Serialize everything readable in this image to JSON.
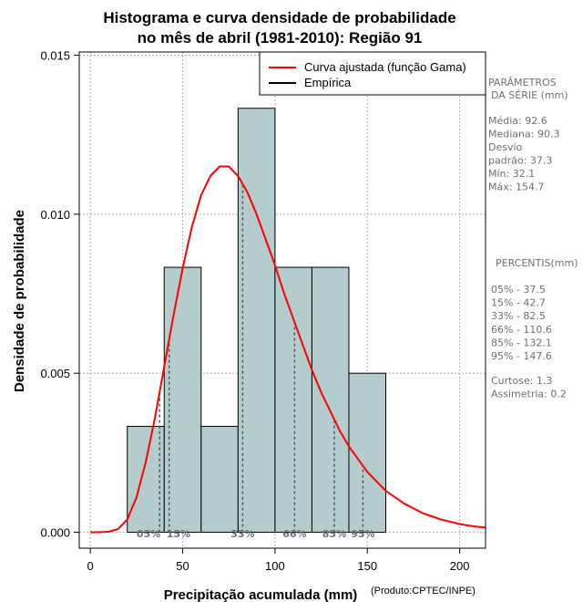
{
  "title_line1": "Histograma e curva densidade de probabilidade",
  "title_line2": "no mês de abril (1981-2010): Região 91",
  "credit": "(Produto:CPTEC/INPE)",
  "legend": {
    "fitted": "Curva ajustada (função Gama)",
    "empirical": "Empírica"
  },
  "side_panel": {
    "params_header": [
      "PARÂMETROS",
      "DA SÉRIE (mm)"
    ],
    "params": [
      "Média:  92.6",
      "Mediana:  90.3",
      "Desvio",
      "padrão:  37.3",
      "Mín:  32.1",
      "Máx:  154.7"
    ],
    "percentiles_header": "PERCENTIS(mm)",
    "percentiles": [
      "05% -  37.5",
      "15% -  42.7",
      "33% -  82.5",
      "66% -  110.6",
      "85% -  132.1",
      "95% -  147.6"
    ],
    "stats": [
      "Curtose:  1.3",
      "Assimetria:  0.2"
    ]
  },
  "colors": {
    "bar_fill": "#b5cccc",
    "curve": "#ff0000",
    "empirical": "#000000",
    "grid": "#b0b0b0",
    "percentile_line": "#555555"
  },
  "chart_data": {
    "type": "bar",
    "title": "Histograma e curva densidade de probabilidade no mês de abril (1981-2010): Região 91",
    "xlabel": "Precipitação acumulada (mm)",
    "ylabel": "Densidade de probabilidade",
    "xlim": [
      -6,
      214
    ],
    "ylim": [
      -0.0005,
      0.0151
    ],
    "x_ticks": [
      0,
      50,
      100,
      150,
      200
    ],
    "x_tick_labels": [
      "0",
      "50",
      "100",
      "150",
      "200"
    ],
    "y_ticks": [
      0.0,
      0.005,
      0.01,
      0.015
    ],
    "y_tick_labels": [
      "0.000",
      "0.005",
      "0.010",
      "0.015"
    ],
    "grid": true,
    "legend_position": "top-right",
    "bins": [
      {
        "x0": 20,
        "x1": 40,
        "density": 0.00333
      },
      {
        "x0": 40,
        "x1": 60,
        "density": 0.00833
      },
      {
        "x0": 60,
        "x1": 80,
        "density": 0.00333
      },
      {
        "x0": 80,
        "x1": 100,
        "density": 0.01333
      },
      {
        "x0": 100,
        "x1": 120,
        "density": 0.00833
      },
      {
        "x0": 120,
        "x1": 140,
        "density": 0.00833
      },
      {
        "x0": 140,
        "x1": 160,
        "density": 0.005
      }
    ],
    "fitted_curve": {
      "name": "Curva ajustada (função Gama)",
      "x": [
        0,
        5,
        10,
        15,
        20,
        25,
        30,
        35,
        40,
        45,
        50,
        55,
        60,
        65,
        70,
        75,
        80,
        85,
        90,
        95,
        100,
        105,
        110,
        115,
        120,
        125,
        130,
        135,
        140,
        145,
        150,
        155,
        160,
        165,
        170,
        175,
        180,
        185,
        190,
        195,
        200,
        205,
        210,
        214
      ],
      "y": [
        0.0,
        0.0,
        2e-05,
        0.0001,
        0.0004,
        0.0011,
        0.0022,
        0.0036,
        0.0052,
        0.0068,
        0.0083,
        0.0096,
        0.0106,
        0.0112,
        0.0115,
        0.0115,
        0.0112,
        0.0107,
        0.01,
        0.0092,
        0.0084,
        0.0075,
        0.0067,
        0.0059,
        0.0051,
        0.0044,
        0.0038,
        0.0032,
        0.0027,
        0.0023,
        0.0019,
        0.0016,
        0.0013,
        0.0011,
        0.0009,
        0.00075,
        0.0006,
        0.0005,
        0.0004,
        0.00033,
        0.00026,
        0.00021,
        0.00017,
        0.00015
      ]
    },
    "percentiles": [
      {
        "label": "05%",
        "x": 37.5
      },
      {
        "label": "15%",
        "x": 42.7
      },
      {
        "label": "33%",
        "x": 82.5
      },
      {
        "label": "66%",
        "x": 110.6
      },
      {
        "label": "85%",
        "x": 132.1
      },
      {
        "label": "95%",
        "x": 147.6
      }
    ]
  }
}
